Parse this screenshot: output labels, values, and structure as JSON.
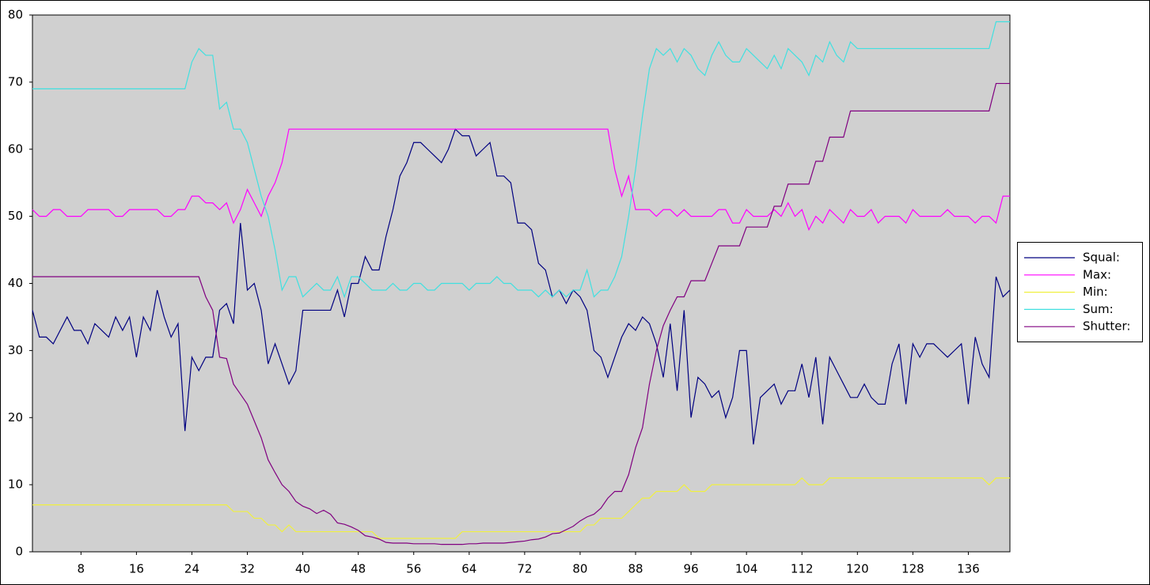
{
  "chart_data": {
    "type": "line",
    "x": [
      1,
      2,
      3,
      4,
      5,
      6,
      7,
      8,
      9,
      10,
      11,
      12,
      13,
      14,
      15,
      16,
      17,
      18,
      19,
      20,
      21,
      22,
      23,
      24,
      25,
      26,
      27,
      28,
      29,
      30,
      31,
      32,
      33,
      34,
      35,
      36,
      37,
      38,
      39,
      40,
      41,
      42,
      43,
      44,
      45,
      46,
      47,
      48,
      49,
      50,
      51,
      52,
      53,
      54,
      55,
      56,
      57,
      58,
      59,
      60,
      61,
      62,
      63,
      64,
      65,
      66,
      67,
      68,
      69,
      70,
      71,
      72,
      73,
      74,
      75,
      76,
      77,
      78,
      79,
      80,
      81,
      82,
      83,
      84,
      85,
      86,
      87,
      88,
      89,
      90,
      91,
      92,
      93,
      94,
      95,
      96,
      97,
      98,
      99,
      100,
      101,
      102,
      103,
      104,
      105,
      106,
      107,
      108,
      109,
      110,
      111,
      112,
      113,
      114,
      115,
      116,
      117,
      118,
      119,
      120,
      121,
      122,
      123,
      124,
      125,
      126,
      127,
      128,
      129,
      130,
      131,
      132,
      133,
      134,
      135,
      136,
      137,
      138,
      139,
      140,
      141,
      142
    ],
    "xlim": [
      1,
      142
    ],
    "xticks": [
      8,
      16,
      24,
      32,
      40,
      48,
      56,
      64,
      72,
      80,
      88,
      96,
      104,
      112,
      120,
      128,
      136
    ],
    "ylim": [
      0,
      80
    ],
    "yticks": [
      0,
      10,
      20,
      30,
      40,
      50,
      60,
      70,
      80
    ],
    "grid": false,
    "legend": "right",
    "series": [
      {
        "name": "Squal:",
        "color": "#000080",
        "values": [
          36,
          32,
          32,
          31,
          33,
          35,
          33,
          33,
          31,
          34,
          33,
          32,
          35,
          33,
          35,
          29,
          35,
          33,
          39,
          35,
          32,
          34,
          18,
          29,
          27,
          29,
          29,
          36,
          37,
          34,
          49,
          39,
          40,
          36,
          28,
          31,
          28,
          25,
          27,
          36,
          36,
          36,
          36,
          36,
          39,
          35,
          40,
          40,
          44,
          42,
          42,
          47,
          51,
          56,
          58,
          61,
          61,
          60,
          59,
          58,
          60,
          63,
          62,
          62,
          59,
          60,
          61,
          56,
          56,
          55,
          49,
          49,
          48,
          43,
          42,
          38,
          39,
          37,
          39,
          38,
          36,
          30,
          29,
          26,
          29,
          32,
          34,
          33,
          35,
          34,
          31,
          26,
          34,
          24,
          36,
          20,
          26,
          25,
          23,
          24,
          20,
          23,
          30,
          30,
          16,
          23,
          24,
          25,
          22,
          24,
          24,
          28,
          23,
          29,
          19,
          29,
          27,
          25,
          23,
          23,
          25,
          23,
          22,
          22,
          28,
          31,
          22,
          31,
          29,
          31,
          31,
          30,
          29,
          30,
          31,
          22,
          32,
          28,
          26,
          41,
          38,
          39
        ]
      },
      {
        "name": "Max:",
        "color": "#ff00ff",
        "values": [
          51,
          50,
          50,
          51,
          51,
          50,
          50,
          50,
          51,
          51,
          51,
          51,
          50,
          50,
          51,
          51,
          51,
          51,
          51,
          50,
          50,
          51,
          51,
          53,
          53,
          52,
          52,
          51,
          52,
          49,
          51,
          54,
          52,
          50,
          53,
          55,
          58,
          63,
          63,
          63,
          63,
          63,
          63,
          63,
          63,
          63,
          63,
          63,
          63,
          63,
          63,
          63,
          63,
          63,
          63,
          63,
          63,
          63,
          63,
          63,
          63,
          63,
          63,
          63,
          63,
          63,
          63,
          63,
          63,
          63,
          63,
          63,
          63,
          63,
          63,
          63,
          63,
          63,
          63,
          63,
          63,
          63,
          63,
          63,
          57,
          53,
          56,
          51,
          51,
          51,
          50,
          51,
          51,
          50,
          51,
          50,
          50,
          50,
          50,
          51,
          51,
          49,
          49,
          51,
          50,
          50,
          50,
          51,
          50,
          52,
          50,
          51,
          48,
          50,
          49,
          51,
          50,
          49,
          51,
          50,
          50,
          51,
          49,
          50,
          50,
          50,
          49,
          51,
          50,
          50,
          50,
          50,
          51,
          50,
          50,
          50,
          49,
          50,
          50,
          49,
          53,
          53
        ]
      },
      {
        "name": "Min:",
        "color": "#f0f040",
        "values": [
          7,
          7,
          7,
          7,
          7,
          7,
          7,
          7,
          7,
          7,
          7,
          7,
          7,
          7,
          7,
          7,
          7,
          7,
          7,
          7,
          7,
          7,
          7,
          7,
          7,
          7,
          7,
          7,
          7,
          6,
          6,
          6,
          5,
          5,
          4,
          4,
          3,
          4,
          3,
          3,
          3,
          3,
          3,
          3,
          3,
          3,
          3,
          3,
          3,
          3,
          2,
          2,
          2,
          2,
          2,
          2,
          2,
          2,
          2,
          2,
          2,
          2,
          3,
          3,
          3,
          3,
          3,
          3,
          3,
          3,
          3,
          3,
          3,
          3,
          3,
          3,
          3,
          3,
          3,
          3,
          4,
          4,
          5,
          5,
          5,
          5,
          6,
          7,
          8,
          8,
          9,
          9,
          9,
          9,
          10,
          9,
          9,
          9,
          10,
          10,
          10,
          10,
          10,
          10,
          10,
          10,
          10,
          10,
          10,
          10,
          10,
          11,
          10,
          10,
          10,
          11,
          11,
          11,
          11,
          11,
          11,
          11,
          11,
          11,
          11,
          11,
          11,
          11,
          11,
          11,
          11,
          11,
          11,
          11,
          11,
          11,
          11,
          11,
          10,
          11,
          11,
          11
        ]
      },
      {
        "name": "Sum:",
        "color": "#40e0e0",
        "values": [
          69,
          69,
          69,
          69,
          69,
          69,
          69,
          69,
          69,
          69,
          69,
          69,
          69,
          69,
          69,
          69,
          69,
          69,
          69,
          69,
          69,
          69,
          69,
          73,
          75,
          74,
          74,
          66,
          67,
          63,
          63,
          61,
          57,
          53,
          50,
          45,
          39,
          41,
          41,
          38,
          39,
          40,
          39,
          39,
          41,
          38,
          41,
          41,
          40,
          39,
          39,
          39,
          40,
          39,
          39,
          40,
          40,
          39,
          39,
          40,
          40,
          40,
          40,
          39,
          40,
          40,
          40,
          41,
          40,
          40,
          39,
          39,
          39,
          38,
          39,
          38,
          39,
          38,
          39,
          39,
          42,
          38,
          39,
          39,
          41,
          44,
          50,
          57,
          65,
          72,
          75,
          74,
          75,
          73,
          75,
          74,
          72,
          71,
          74,
          76,
          74,
          73,
          73,
          75,
          74,
          73,
          72,
          74,
          72,
          75,
          74,
          73,
          71,
          74,
          73,
          76,
          74,
          73,
          76,
          75,
          75,
          75,
          75,
          75,
          75,
          75,
          75,
          75,
          75,
          75,
          75,
          75,
          75,
          75,
          75,
          75,
          75,
          75,
          75,
          79,
          79,
          79
        ]
      },
      {
        "name": "Shutter:",
        "color": "#800080",
        "values": [
          41,
          41,
          41,
          41,
          41,
          41,
          41,
          41,
          41,
          41,
          41,
          41,
          41,
          41,
          41,
          41,
          41,
          41,
          41,
          41,
          41,
          41,
          41,
          41,
          41,
          38,
          36,
          29,
          28.8,
          25,
          23.5,
          22,
          19.5,
          17,
          13.7,
          11.8,
          10,
          9,
          7.5,
          6.8,
          6.4,
          5.7,
          6.2,
          5.6,
          4.3,
          4.1,
          3.7,
          3.2,
          2.4,
          2.2,
          1.9,
          1.4,
          1.3,
          1.3,
          1.3,
          1.2,
          1.2,
          1.2,
          1.2,
          1.1,
          1.1,
          1.1,
          1.1,
          1.2,
          1.2,
          1.3,
          1.3,
          1.3,
          1.3,
          1.4,
          1.5,
          1.6,
          1.8,
          1.9,
          2.2,
          2.7,
          2.8,
          3.3,
          3.8,
          4.6,
          5.2,
          5.6,
          6.5,
          8,
          9,
          9,
          11.5,
          15.5,
          18.5,
          25,
          30,
          33.7,
          36,
          38,
          38,
          40.4,
          40.4,
          40.4,
          43,
          45.6,
          45.6,
          45.6,
          45.6,
          48.4,
          48.4,
          48.4,
          48.4,
          51.5,
          51.5,
          54.8,
          54.8,
          54.8,
          54.8,
          58.2,
          58.2,
          61.8,
          61.8,
          61.8,
          65.7,
          65.7,
          65.7,
          65.7,
          65.7,
          65.7,
          65.7,
          65.7,
          65.7,
          65.7,
          65.7,
          65.7,
          65.7,
          65.7,
          65.7,
          65.7,
          65.7,
          65.7,
          65.7,
          65.7,
          65.7,
          69.8,
          69.8,
          69.8
        ]
      }
    ]
  }
}
